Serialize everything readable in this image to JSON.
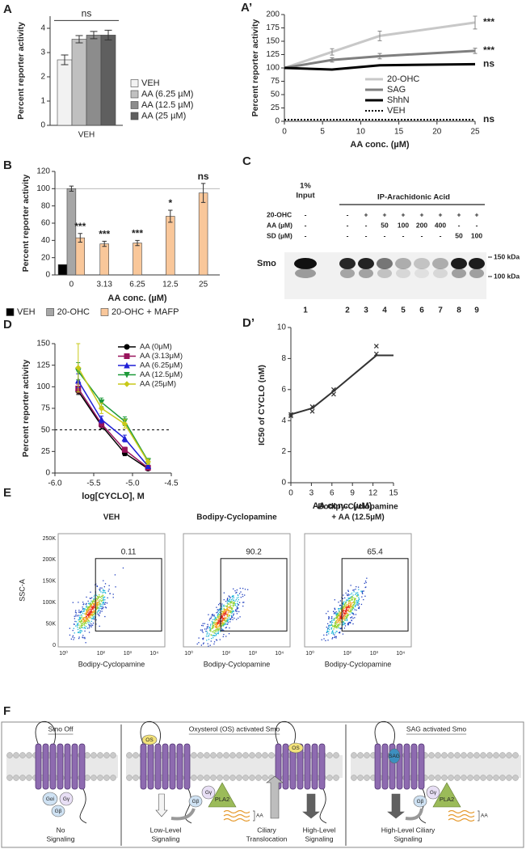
{
  "chart_data": [
    {
      "panel": "A",
      "type": "bar",
      "ylabel": "Percent reporter activity",
      "categories": [
        "VEH"
      ],
      "series": [
        {
          "name": "VEH",
          "color": "#f2f2f2",
          "values": [
            2.7
          ],
          "errors": [
            0.2
          ]
        },
        {
          "name": "AA (6.25 µM)",
          "color": "#c0c0c0",
          "values": [
            3.55
          ],
          "errors": [
            0.15
          ]
        },
        {
          "name": "AA (12.5 µM)",
          "color": "#8c8c8c",
          "values": [
            3.72
          ],
          "errors": [
            0.15
          ]
        },
        {
          "name": "AA (25 µM)",
          "color": "#5f5f5f",
          "values": [
            3.72
          ],
          "errors": [
            0.2
          ]
        }
      ],
      "ylim": [
        0,
        4.5
      ],
      "yticks": [
        0,
        1,
        2,
        3,
        4
      ],
      "annotations": [
        "ns"
      ],
      "annotation_bracket": true,
      "legend": "right"
    },
    {
      "panel": "A’",
      "type": "line",
      "xlabel": "AA conc. (µM)",
      "ylabel": "Percent reporter activity",
      "x": [
        0,
        6.25,
        12.5,
        25
      ],
      "series": [
        {
          "name": "20-OHC",
          "color": "#c8c8c8",
          "values": [
            100,
            130,
            160,
            185
          ],
          "errors": [
            0,
            6,
            9,
            12
          ]
        },
        {
          "name": "SAG",
          "color": "#7f7f7f",
          "values": [
            100,
            115,
            122,
            132
          ],
          "errors": [
            0,
            4,
            5,
            5
          ]
        },
        {
          "name": "ShhN",
          "color": "#000000",
          "values": [
            100,
            97,
            105,
            107
          ]
        },
        {
          "name": "VEH",
          "color": "#000000",
          "values": [
            3,
            3,
            3,
            3
          ],
          "dash": true
        }
      ],
      "annotations": [
        "***",
        "***",
        "ns",
        "ns"
      ],
      "xlim": [
        0,
        25
      ],
      "xticks": [
        0,
        5,
        10,
        15,
        20,
        25
      ],
      "ylim": [
        0,
        200
      ],
      "yticks": [
        0,
        25,
        50,
        75,
        100,
        125,
        150,
        175,
        200
      ],
      "legend": "center-right"
    },
    {
      "panel": "B",
      "type": "bar",
      "xlabel": "AA conc. (µM)",
      "ylabel": "Percent reporter activity",
      "categories": [
        "0",
        "3.13",
        "6.25",
        "12.5",
        "25"
      ],
      "series": [
        {
          "name": "VEH",
          "color": "#000000",
          "values": [
            12,
            null,
            null,
            null,
            null
          ]
        },
        {
          "name": "20-OHC",
          "color": "#a6a6a6",
          "values": [
            100,
            null,
            null,
            null,
            null
          ],
          "errors": [
            3,
            null,
            null,
            null,
            null
          ]
        },
        {
          "name": "20-OHC + MAFP",
          "color": "#f9c79a",
          "values": [
            43,
            36,
            37,
            68,
            95
          ],
          "errors": [
            5,
            3,
            3,
            7,
            11
          ]
        }
      ],
      "annotations": [
        "***",
        "***",
        "***",
        "*",
        "ns"
      ],
      "reference_line": 100,
      "reference_dash": false,
      "ylim": [
        0,
        120
      ],
      "yticks": [
        0,
        20,
        40,
        60,
        80,
        100,
        120
      ],
      "legend": "bottom"
    },
    {
      "panel": "D",
      "type": "line",
      "xlabel": "log[CYCLO], M",
      "ylabel": "Percent reporter activity",
      "x": [
        -5.7,
        -5.4,
        -5.1,
        -4.8
      ],
      "series": [
        {
          "name": "AA (0μM)",
          "color": "#000000",
          "marker": "circle",
          "values": [
            95,
            55,
            23,
            5
          ],
          "errors": [
            4,
            4,
            3,
            2
          ]
        },
        {
          "name": "AA (3.13μM)",
          "color": "#99145c",
          "marker": "square",
          "values": [
            98,
            57,
            27,
            6
          ],
          "errors": [
            5,
            4,
            3,
            2
          ]
        },
        {
          "name": "AA (6.25μM)",
          "color": "#1f1fd6",
          "marker": "triangle",
          "values": [
            107,
            62,
            40,
            8
          ],
          "errors": [
            8,
            4,
            4,
            2
          ]
        },
        {
          "name": "AA (12.5μM)",
          "color": "#1e9a3a",
          "marker": "triangle-down",
          "values": [
            118,
            82,
            60,
            14
          ],
          "errors": [
            10,
            5,
            5,
            3
          ]
        },
        {
          "name": "AA (25μM)",
          "color": "#c9c91a",
          "marker": "diamond",
          "values": [
            122,
            75,
            57,
            13
          ],
          "errors": [
            28,
            6,
            5,
            3
          ]
        }
      ],
      "reference_line": 50,
      "reference_dash": true,
      "xlim": [
        -6,
        -4.5
      ],
      "xticks": [
        {
          "value": -6,
          "label": "-6.0"
        },
        -5.5,
        {
          "value": -5,
          "label": "-5.0"
        },
        -4.5
      ],
      "ylim": [
        0,
        150
      ],
      "yticks": [
        0,
        25,
        50,
        75,
        100,
        125,
        150
      ],
      "legend": "top-right"
    },
    {
      "panel": "D’",
      "type": "line",
      "xlabel": "AA conc. (uM)",
      "ylabel": "IC50 of CYCLO (nM)",
      "x": [
        0,
        3.13,
        6.25,
        12.5,
        15
      ],
      "series": [
        {
          "color": "#333333",
          "values": [
            4.4,
            4.8,
            5.9,
            8.2,
            8.2
          ]
        }
      ],
      "points": {
        "marker": "cross",
        "color": "#333333",
        "x": [
          0,
          0,
          3.13,
          3.13,
          6.25,
          6.25,
          12.5,
          12.5
        ],
        "values": [
          4.3,
          4.4,
          4.6,
          4.9,
          5.7,
          6.0,
          8.3,
          8.8
        ]
      },
      "xlim": [
        0,
        15
      ],
      "xticks": [
        0,
        3,
        6,
        9,
        12,
        15
      ],
      "ylim": [
        0,
        10
      ],
      "yticks": [
        0,
        2,
        4,
        6,
        8,
        10
      ]
    }
  ],
  "blot": {
    "panel": "C",
    "input_label": [
      "1%",
      "Input"
    ],
    "ip_label": "IP-Arachidonic Acid",
    "row_labels": [
      "20-OHC",
      "AA (µM)",
      "SD (µM)"
    ],
    "rows": [
      [
        "-",
        "-",
        "+",
        "+",
        "+",
        "+",
        "+",
        "+",
        "+"
      ],
      [
        "-",
        "-",
        "-",
        "50",
        "100",
        "200",
        "400",
        "-",
        "-"
      ],
      [
        "-",
        "-",
        "-",
        "-",
        "-",
        "-",
        "-",
        "50",
        "100"
      ]
    ],
    "protein": "Smo",
    "markers": [
      "150 kDa",
      "100 kDa"
    ],
    "lanes": [
      "1",
      "2",
      "3",
      "4",
      "5",
      "6",
      "7",
      "8",
      "9"
    ]
  },
  "flow": {
    "panel": "E",
    "y_label": "SSC-A",
    "x_label": "Bodipy-Cyclopamine",
    "yticks": [
      "0",
      "50K",
      "100K",
      "150K",
      "200K",
      "250K"
    ],
    "xticks": [
      "10⁰",
      "10²",
      "10³",
      "10⁴"
    ],
    "plots": [
      {
        "title": [
          "VEH"
        ],
        "gate": 0.11
      },
      {
        "title": [
          "Bodipy-Cyclopamine"
        ],
        "gate": 90.2
      },
      {
        "title": [
          "Bodipy-Cyclopamine",
          "+ AA (12.5µM)"
        ],
        "gate": 65.4
      }
    ]
  },
  "model": {
    "panel": "F",
    "sections": [
      "Smo Off",
      "Oxysterol (OS) activated Smo",
      "SAG activated Smo"
    ],
    "outcomes": [
      [
        "No",
        "Signaling"
      ],
      [
        "Low-Level",
        "Signaling"
      ],
      [
        "Ciliary",
        "Translocation"
      ],
      [
        "High-Level",
        "Signaling"
      ],
      [
        "High-Level Ciliary",
        "Signaling"
      ]
    ],
    "labels": {
      "g_alpha": "Gαi",
      "g_gamma": "Gγ",
      "g_beta": "Gβ",
      "pla2": "PLA2",
      "aa": "AA",
      "os": "OS",
      "sag": "SAG"
    }
  }
}
